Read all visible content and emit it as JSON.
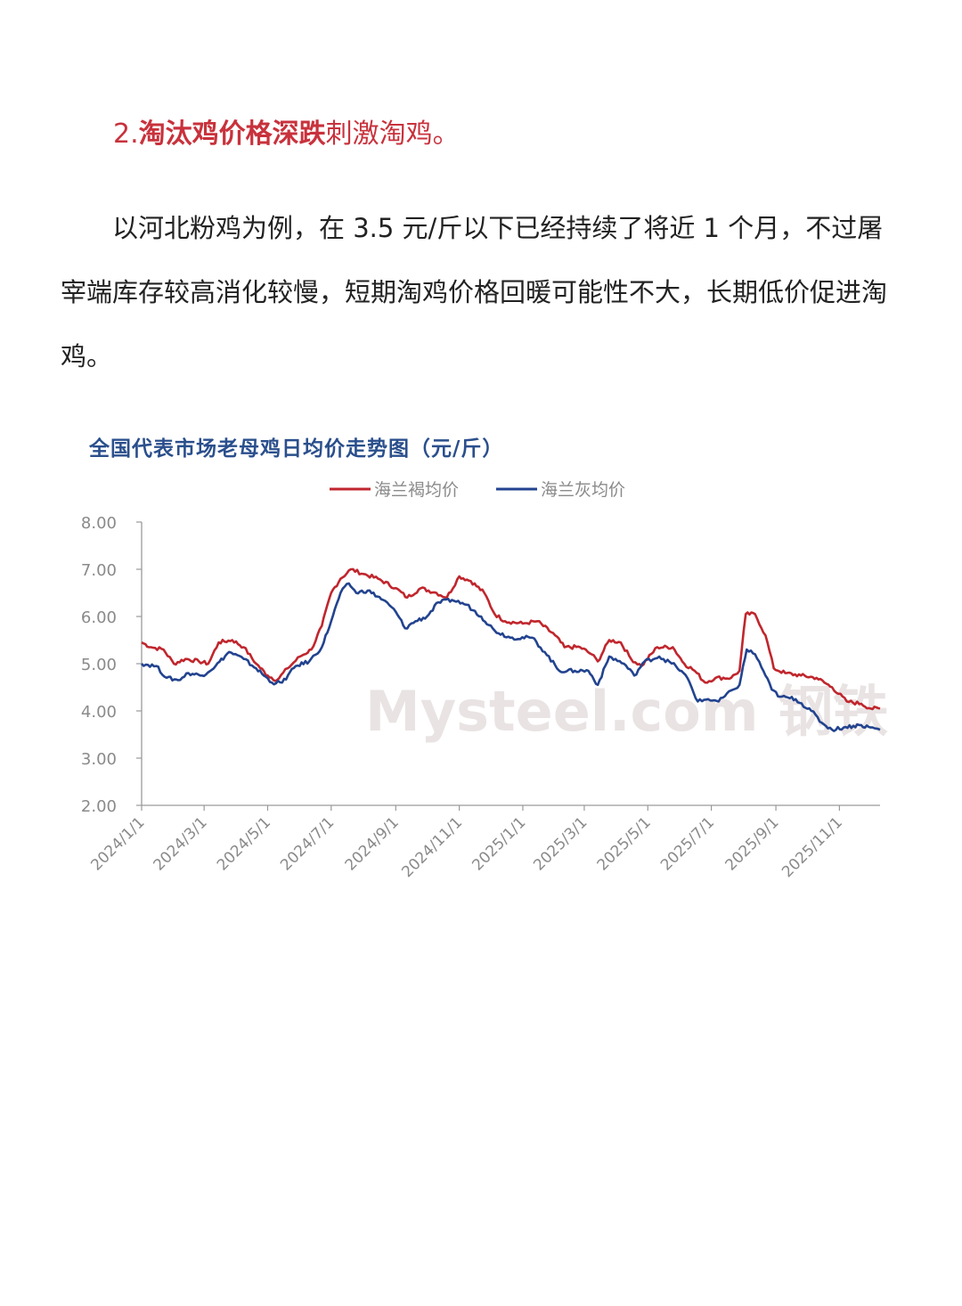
{
  "article": {
    "heading_number": "2.",
    "heading_bold": "淘汰鸡价格深跌",
    "heading_rest": "刺激淘鸡。",
    "paragraph": "以河北粉鸡为例，在 3.5 元/斤以下已经持续了将近 1 个月，不过屠宰端库存较高消化较慢，短期淘鸡价格回暖可能性不大，长期低价促进淘鸡。"
  },
  "colors": {
    "heading": "#c8323c",
    "title": "#2a4f8c",
    "series_red": "#c0262d",
    "series_blue": "#22438f"
  },
  "chart_data": {
    "type": "line",
    "title": "全国代表市场老母鸡日均价走势图（元/斤）",
    "xlabel": "",
    "ylabel": "",
    "ylim": [
      2.0,
      8.0
    ],
    "yticks": [
      "8.00",
      "7.00",
      "6.00",
      "5.00",
      "4.00",
      "3.00",
      "2.00"
    ],
    "xticks": [
      "2024/1/1",
      "2024/3/1",
      "2024/5/1",
      "2024/7/1",
      "2024/9/1",
      "2024/11/1",
      "2025/1/1",
      "2025/3/1",
      "2025/5/1",
      "2025/7/1",
      "2025/9/1",
      "2025/11/1"
    ],
    "x_range": [
      "2024-01-01",
      "2025-12-10"
    ],
    "legend_position": "top-center",
    "watermark": "Mysteel.com 钢铁",
    "grid": false,
    "series": [
      {
        "name": "海兰褐均价",
        "color": "#c0262d",
        "points": [
          [
            "2024-01-01",
            5.45
          ],
          [
            "2024-01-10",
            5.35
          ],
          [
            "2024-01-22",
            5.3
          ],
          [
            "2024-02-01",
            5.0
          ],
          [
            "2024-02-12",
            5.1
          ],
          [
            "2024-02-25",
            5.05
          ],
          [
            "2024-03-05",
            5.0
          ],
          [
            "2024-03-15",
            5.45
          ],
          [
            "2024-03-28",
            5.5
          ],
          [
            "2024-04-08",
            5.35
          ],
          [
            "2024-04-20",
            5.0
          ],
          [
            "2024-05-01",
            4.75
          ],
          [
            "2024-05-10",
            4.65
          ],
          [
            "2024-05-20",
            4.9
          ],
          [
            "2024-06-01",
            5.15
          ],
          [
            "2024-06-12",
            5.3
          ],
          [
            "2024-06-22",
            5.8
          ],
          [
            "2024-07-01",
            6.5
          ],
          [
            "2024-07-10",
            6.8
          ],
          [
            "2024-07-20",
            7.0
          ],
          [
            "2024-08-01",
            6.9
          ],
          [
            "2024-08-15",
            6.8
          ],
          [
            "2024-09-01",
            6.6
          ],
          [
            "2024-09-12",
            6.4
          ],
          [
            "2024-09-25",
            6.6
          ],
          [
            "2024-10-10",
            6.5
          ],
          [
            "2024-10-20",
            6.4
          ],
          [
            "2024-11-01",
            6.85
          ],
          [
            "2024-11-12",
            6.75
          ],
          [
            "2024-11-25",
            6.5
          ],
          [
            "2024-12-05",
            6.05
          ],
          [
            "2024-12-15",
            5.9
          ],
          [
            "2025-01-01",
            5.85
          ],
          [
            "2025-01-15",
            5.9
          ],
          [
            "2025-02-01",
            5.6
          ],
          [
            "2025-02-10",
            5.35
          ],
          [
            "2025-02-25",
            5.35
          ],
          [
            "2025-03-08",
            5.2
          ],
          [
            "2025-03-14",
            5.05
          ],
          [
            "2025-03-25",
            5.5
          ],
          [
            "2025-04-05",
            5.45
          ],
          [
            "2025-04-15",
            5.1
          ],
          [
            "2025-04-25",
            4.95
          ],
          [
            "2025-05-10",
            5.35
          ],
          [
            "2025-05-25",
            5.35
          ],
          [
            "2025-06-05",
            5.0
          ],
          [
            "2025-06-15",
            4.85
          ],
          [
            "2025-06-25",
            4.6
          ],
          [
            "2025-07-05",
            4.7
          ],
          [
            "2025-07-20",
            4.7
          ],
          [
            "2025-07-28",
            4.85
          ],
          [
            "2025-08-03",
            6.05
          ],
          [
            "2025-08-12",
            6.05
          ],
          [
            "2025-08-22",
            5.6
          ],
          [
            "2025-08-30",
            4.9
          ],
          [
            "2025-09-10",
            4.8
          ],
          [
            "2025-09-25",
            4.75
          ],
          [
            "2025-10-10",
            4.7
          ],
          [
            "2025-10-25",
            4.5
          ],
          [
            "2025-11-08",
            4.2
          ],
          [
            "2025-11-22",
            4.15
          ],
          [
            "2025-12-01",
            4.05
          ],
          [
            "2025-12-10",
            4.05
          ]
        ]
      },
      {
        "name": "海兰灰均价",
        "color": "#22438f",
        "points": [
          [
            "2024-01-01",
            5.0
          ],
          [
            "2024-01-15",
            4.95
          ],
          [
            "2024-01-25",
            4.7
          ],
          [
            "2024-02-05",
            4.65
          ],
          [
            "2024-02-15",
            4.8
          ],
          [
            "2024-02-28",
            4.75
          ],
          [
            "2024-03-12",
            4.95
          ],
          [
            "2024-03-25",
            5.25
          ],
          [
            "2024-04-08",
            5.1
          ],
          [
            "2024-04-20",
            4.9
          ],
          [
            "2024-05-05",
            4.6
          ],
          [
            "2024-05-15",
            4.6
          ],
          [
            "2024-05-28",
            4.95
          ],
          [
            "2024-06-10",
            5.05
          ],
          [
            "2024-06-22",
            5.35
          ],
          [
            "2024-07-01",
            5.9
          ],
          [
            "2024-07-10",
            6.5
          ],
          [
            "2024-07-18",
            6.7
          ],
          [
            "2024-07-25",
            6.5
          ],
          [
            "2024-08-05",
            6.55
          ],
          [
            "2024-08-20",
            6.35
          ],
          [
            "2024-09-01",
            6.1
          ],
          [
            "2024-09-10",
            5.75
          ],
          [
            "2024-09-20",
            5.9
          ],
          [
            "2024-10-01",
            6.0
          ],
          [
            "2024-10-12",
            6.3
          ],
          [
            "2024-10-25",
            6.35
          ],
          [
            "2024-11-08",
            6.25
          ],
          [
            "2024-11-22",
            6.0
          ],
          [
            "2024-12-05",
            5.7
          ],
          [
            "2024-12-20",
            5.55
          ],
          [
            "2025-01-10",
            5.55
          ],
          [
            "2025-01-22",
            5.25
          ],
          [
            "2025-02-05",
            4.85
          ],
          [
            "2025-02-20",
            4.85
          ],
          [
            "2025-03-05",
            4.85
          ],
          [
            "2025-03-14",
            4.55
          ],
          [
            "2025-03-25",
            5.15
          ],
          [
            "2025-04-08",
            5.0
          ],
          [
            "2025-04-18",
            4.75
          ],
          [
            "2025-04-28",
            5.05
          ],
          [
            "2025-05-12",
            5.15
          ],
          [
            "2025-05-28",
            4.95
          ],
          [
            "2025-06-08",
            4.7
          ],
          [
            "2025-06-18",
            4.2
          ],
          [
            "2025-06-28",
            4.25
          ],
          [
            "2025-07-08",
            4.2
          ],
          [
            "2025-07-22",
            4.45
          ],
          [
            "2025-07-28",
            4.55
          ],
          [
            "2025-08-04",
            5.3
          ],
          [
            "2025-08-12",
            5.2
          ],
          [
            "2025-08-20",
            4.85
          ],
          [
            "2025-08-28",
            4.45
          ],
          [
            "2025-09-05",
            4.3
          ],
          [
            "2025-09-20",
            4.25
          ],
          [
            "2025-10-05",
            4.0
          ],
          [
            "2025-10-15",
            3.75
          ],
          [
            "2025-10-25",
            3.6
          ],
          [
            "2025-11-05",
            3.65
          ],
          [
            "2025-11-20",
            3.7
          ],
          [
            "2025-12-01",
            3.65
          ],
          [
            "2025-12-10",
            3.6
          ]
        ]
      }
    ]
  }
}
